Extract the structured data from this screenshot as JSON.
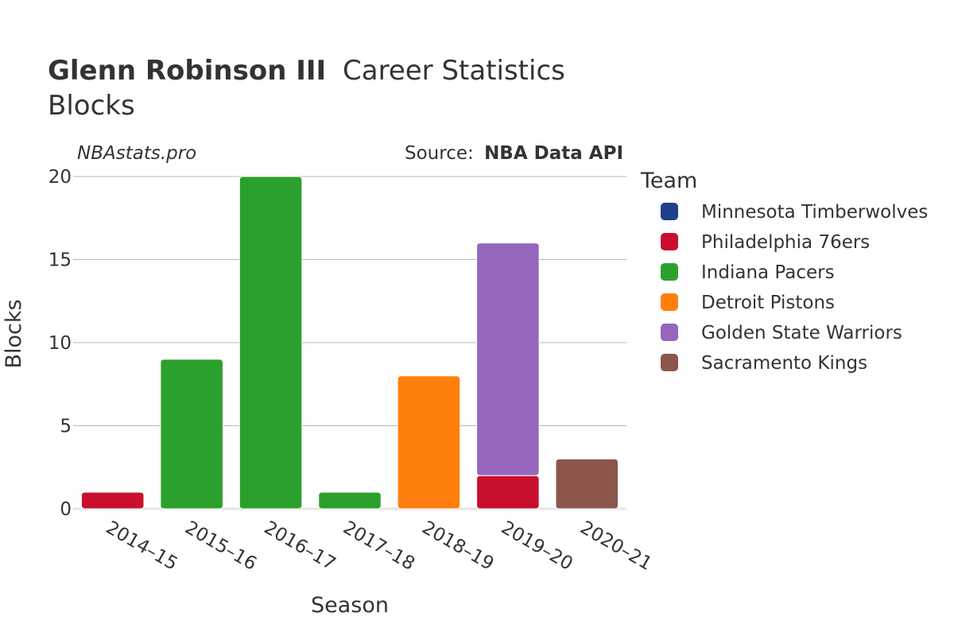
{
  "title": {
    "player": "Glenn Robinson III",
    "suffix": "Career Statistics",
    "stat": "Blocks"
  },
  "watermark": "NBAstats.pro",
  "source": {
    "prefix": "Source:",
    "name": "NBA Data API"
  },
  "legend": {
    "title": "Team",
    "items": [
      {
        "name": "Minnesota Timberwolves",
        "color": "#1f3f8a"
      },
      {
        "name": "Philadelphia 76ers",
        "color": "#c8102e"
      },
      {
        "name": "Indiana Pacers",
        "color": "#2ca02c"
      },
      {
        "name": "Detroit Pistons",
        "color": "#ff7f0e"
      },
      {
        "name": "Golden State Warriors",
        "color": "#9467bd"
      },
      {
        "name": "Sacramento Kings",
        "color": "#8c564b"
      }
    ]
  },
  "chart_data": {
    "type": "bar",
    "stacked": true,
    "title": "Glenn Robinson III Career Statistics Blocks",
    "xlabel": "Season",
    "ylabel": "Blocks",
    "ylim": [
      0,
      20
    ],
    "yticks": [
      0,
      5,
      10,
      15,
      20
    ],
    "categories": [
      "2014–15",
      "2015–16",
      "2016–17",
      "2017–18",
      "2018–19",
      "2019–20",
      "2020–21"
    ],
    "series": [
      {
        "name": "Minnesota Timberwolves",
        "color": "#1f3f8a",
        "values": [
          0,
          0,
          0,
          0,
          0,
          0,
          0
        ]
      },
      {
        "name": "Philadelphia 76ers",
        "color": "#c8102e",
        "values": [
          1,
          0,
          0,
          0,
          0,
          2,
          0
        ]
      },
      {
        "name": "Indiana Pacers",
        "color": "#2ca02c",
        "values": [
          0,
          9,
          20,
          1,
          0,
          0,
          0
        ]
      },
      {
        "name": "Detroit Pistons",
        "color": "#ff7f0e",
        "values": [
          0,
          0,
          0,
          0,
          8,
          0,
          0
        ]
      },
      {
        "name": "Golden State Warriors",
        "color": "#9467bd",
        "values": [
          0,
          0,
          0,
          0,
          0,
          14,
          0
        ]
      },
      {
        "name": "Sacramento Kings",
        "color": "#8c564b",
        "values": [
          0,
          0,
          0,
          0,
          0,
          0,
          3
        ]
      }
    ]
  }
}
